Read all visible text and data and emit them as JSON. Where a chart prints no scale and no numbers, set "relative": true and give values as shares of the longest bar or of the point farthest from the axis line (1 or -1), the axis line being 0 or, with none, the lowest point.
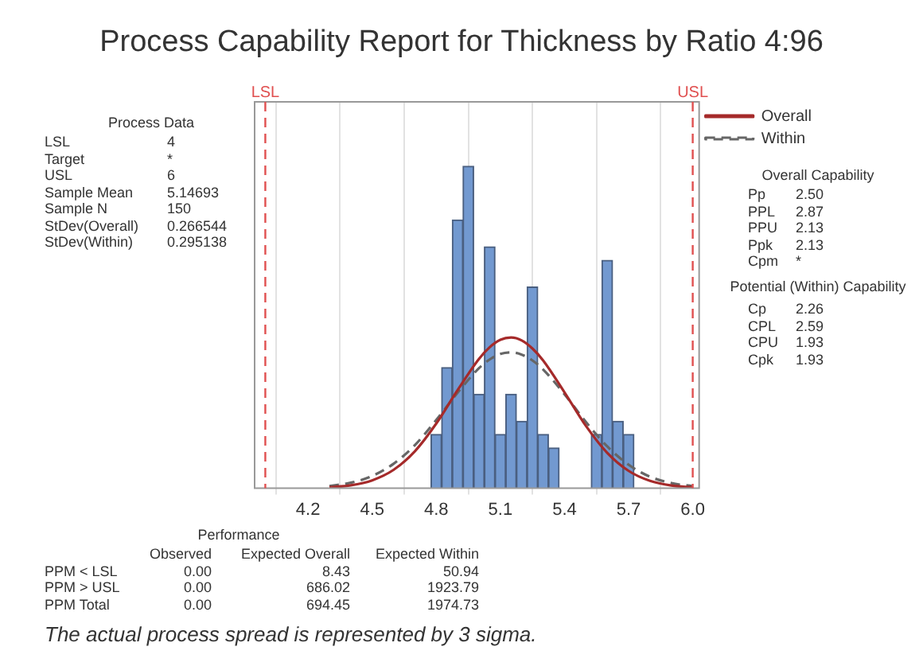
{
  "chart_data": {
    "type": "histogram",
    "title": "Process Capability Report for Thickness by Ratio 4:96",
    "relative": true,
    "bins": [
      4.775,
      4.825,
      4.875,
      4.925,
      4.975,
      5.025,
      5.075,
      5.125,
      5.175,
      5.225,
      5.275,
      5.325,
      5.375,
      5.425,
      5.475,
      5.525,
      5.575,
      5.625,
      5.675,
      5.725
    ],
    "values": [
      0.167,
      0.375,
      0.833,
      1,
      0.292,
      0.75,
      0.167,
      0.292,
      0.208,
      0.625,
      0.167,
      0.125,
      0,
      0,
      0,
      0.167,
      0.708,
      0.208,
      0.167
    ],
    "color": "#7299d0",
    "series": [
      {
        "name": "Overall",
        "type": "line",
        "color": "#a52a2a",
        "line_style": "solid",
        "x": [
          4.3,
          4.4,
          4.5,
          4.6,
          4.7,
          4.8,
          4.9,
          5.0,
          5.05,
          5.1,
          5.15,
          5.2,
          5.25,
          5.3,
          5.4,
          5.5,
          5.6,
          5.7,
          5.8,
          5.9,
          6.0
        ],
        "values": [
          0.003,
          0.0092,
          0.0246,
          0.057,
          0.115,
          0.201,
          0.305,
          0.402,
          0.438,
          0.461,
          0.468,
          0.459,
          0.434,
          0.397,
          0.298,
          0.194,
          0.11,
          0.054,
          0.023,
          0.0086,
          0.0028
        ]
      },
      {
        "name": "Within",
        "type": "line",
        "color": "#666666",
        "line_style": "dashed",
        "x": [
          4.3,
          4.4,
          4.5,
          4.6,
          4.7,
          4.8,
          4.9,
          5.0,
          5.05,
          5.1,
          5.15,
          5.2,
          5.25,
          5.3,
          5.4,
          5.5,
          5.6,
          5.7,
          5.8,
          5.9,
          6.0
        ],
        "values": [
          0.0069,
          0.0172,
          0.038,
          0.076,
          0.134,
          0.212,
          0.297,
          0.373,
          0.4,
          0.417,
          0.422,
          0.415,
          0.397,
          0.369,
          0.292,
          0.206,
          0.13,
          0.073,
          0.036,
          0.016,
          0.0065
        ]
      }
    ],
    "xlim": [
      3.95,
      6.03
    ],
    "xticks": [
      4.2,
      4.5,
      4.8,
      5.1,
      5.4,
      5.7,
      {
        "value": 6,
        "label": "6.0"
      }
    ],
    "ref_lines": [
      {
        "axis": "x",
        "value": 4,
        "label": "LSL",
        "color": "#e05050",
        "line_style": "dashed"
      },
      {
        "axis": "x",
        "value": 6,
        "label": "USL",
        "color": "#e05050",
        "line_style": "dashed"
      }
    ],
    "grid": "x",
    "legend": "right",
    "annotations": [
      "Process Data",
      "LSL\t4",
      "Target\t*",
      "USL\t6",
      "Sample Mean\t5.14693",
      "Sample N\t150",
      "StDev(Overall)\t0.266544",
      "StDev(Within)\t0.295138",
      "Overall Capability",
      "Pp\t2.50",
      "PPL\t2.87",
      "PPU\t2.13",
      "Ppk\t2.13",
      "Cpm\t*",
      "Potential (Within) Capability",
      "Cp\t2.26",
      "CPL\t2.59",
      "CPU\t1.93",
      "Cpk\t1.93",
      "Performance",
      "\tObserved\tExpected Overall\tExpected Within",
      "PPM < LSL\t0.00\t8.43\t50.94",
      "PPM > USL\t0.00\t686.02\t1923.79",
      "PPM Total\t0.00\t694.45\t1974.73",
      "The actual process spread is represented by 3 sigma."
    ]
  }
}
